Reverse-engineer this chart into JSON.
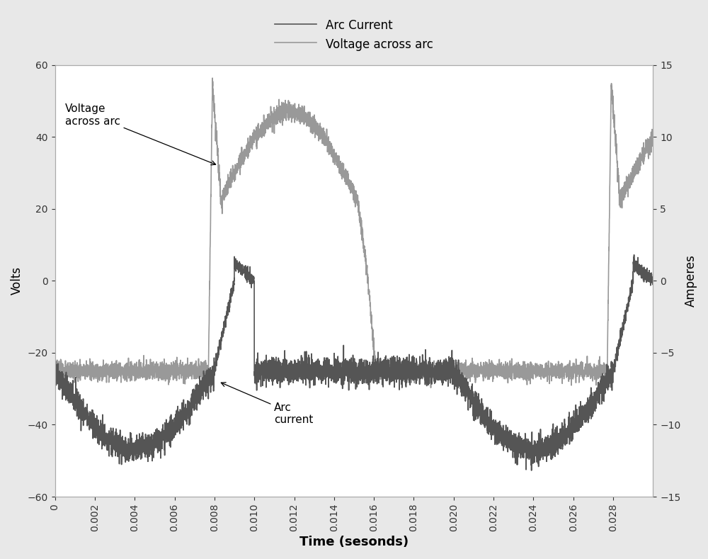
{
  "xlabel": "Time (sesonds)",
  "ylabel_left": "Volts",
  "ylabel_right": "Amperes",
  "xlim": [
    0,
    0.03
  ],
  "ylim_left": [
    -60,
    60
  ],
  "ylim_right": [
    -15,
    15
  ],
  "xticks": [
    0,
    0.002,
    0.004,
    0.006,
    0.008,
    0.01,
    0.012,
    0.014,
    0.016,
    0.018,
    0.02,
    0.022,
    0.024,
    0.026,
    0.028
  ],
  "yticks_left": [
    -60,
    -40,
    -20,
    0,
    20,
    40,
    60
  ],
  "yticks_right": [
    -15,
    -10,
    -5,
    0,
    5,
    10,
    15
  ],
  "legend_arc_current": "Arc Current",
  "legend_voltage": "Voltage across arc",
  "arc_current_color": "#555555",
  "voltage_color": "#999999",
  "background_color": "#e8e8e8",
  "plot_bg_color": "#ffffff",
  "annotation_voltage": "Voltage\nacross arc",
  "annotation_current": "Arc\ncurrent",
  "noise_seed": 42,
  "period": 0.02
}
